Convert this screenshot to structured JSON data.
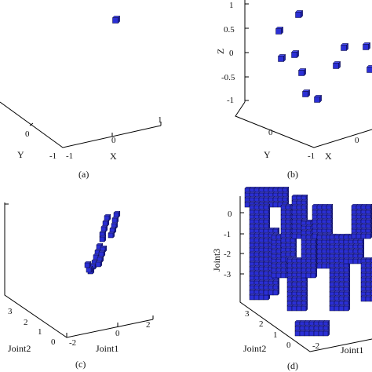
{
  "panels": [
    {
      "caption": "(a)",
      "axes": {
        "x": "X",
        "y": "Y",
        "z": ""
      },
      "x_ticks": [
        "-1",
        "0",
        "1"
      ],
      "y_ticks": [
        "-1",
        "0"
      ],
      "z_ticks": []
    },
    {
      "caption": "(b)",
      "axes": {
        "x": "X",
        "y": "Y",
        "z": "Z"
      },
      "x_ticks": [
        "-1",
        "0"
      ],
      "y_ticks": [
        "0"
      ],
      "z_ticks": [
        "1",
        "0.5",
        "0",
        "-0.5",
        "-1"
      ]
    },
    {
      "caption": "(c)",
      "axes": {
        "x": "Joint1",
        "y": "Joint2",
        "z": ""
      },
      "x_ticks": [
        "-2",
        "0",
        "2"
      ],
      "y_ticks": [
        "3",
        "2",
        "1",
        "0"
      ],
      "z_ticks": []
    },
    {
      "caption": "(d)",
      "axes": {
        "x": "Joint1",
        "y": "Joint2",
        "z": "Joint3"
      },
      "x_ticks": [
        "-2"
      ],
      "y_ticks": [
        "3",
        "2",
        "1",
        "0"
      ],
      "z_ticks": [
        "0",
        "-1",
        "-2",
        "-3"
      ]
    }
  ],
  "colors": {
    "voxel": "#2b2fd6",
    "voxel_edge": "#0b0b3a",
    "axis": "#000000"
  }
}
